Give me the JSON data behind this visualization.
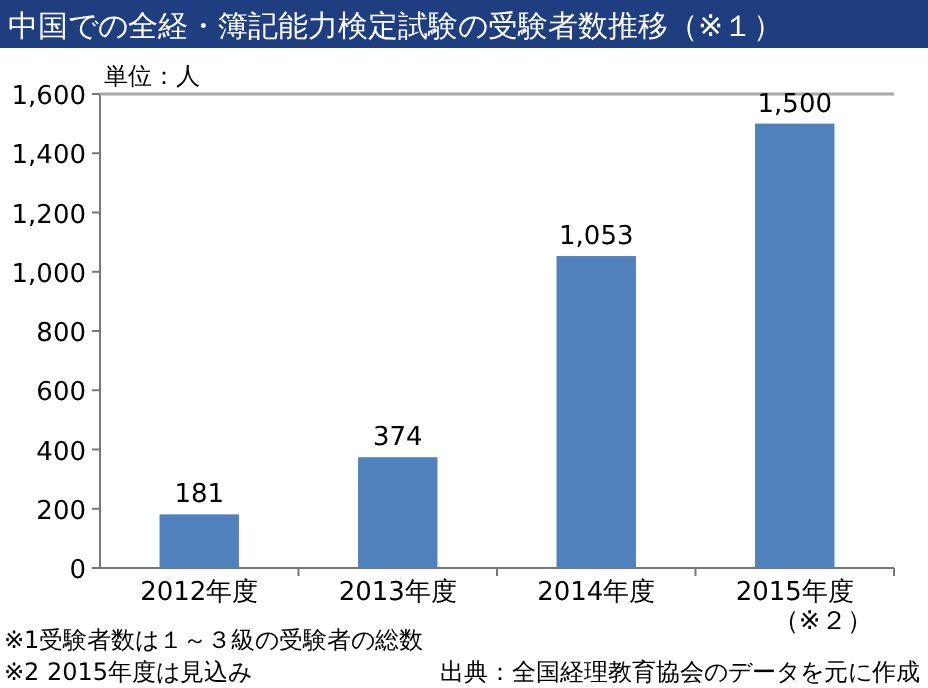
{
  "chart_data": {
    "type": "bar",
    "title": "中国での全経・簿記能力検定試験の受験者数推移（※１）",
    "categories": [
      "2012年度",
      "2013年度",
      "2014年度",
      "2015年度（※２）"
    ],
    "values": [
      181,
      374,
      1053,
      1500
    ],
    "value_labels": [
      "181",
      "374",
      "1,053",
      "1,500"
    ],
    "color": "#4f81bd",
    "ylim": [
      0,
      1600
    ],
    "yticks": [
      {
        "value": 0,
        "label": "0"
      },
      {
        "value": 200,
        "label": "200"
      },
      {
        "value": 400,
        "label": "400"
      },
      {
        "value": 600,
        "label": "600"
      },
      {
        "value": 800,
        "label": "800"
      },
      {
        "value": 1000,
        "label": "1,000"
      },
      {
        "value": 1200,
        "label": "1,200"
      },
      {
        "value": 1400,
        "label": "1,400"
      },
      {
        "value": 1600,
        "label": "1,600"
      }
    ],
    "ylabel": "単位：人",
    "annotations": [
      "※1受験者数は１～３級の受験者の総数",
      "※2 2015年度は見込み",
      "出典：全国経理教育協会のデータを元に作成"
    ]
  }
}
